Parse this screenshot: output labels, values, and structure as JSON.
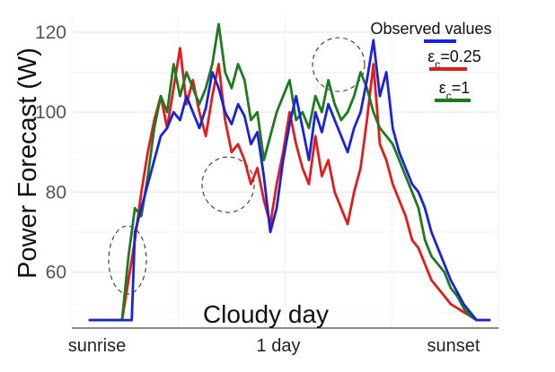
{
  "chart_data": {
    "type": "line",
    "ylabel": "Power Forecast (W)",
    "xlabel": "1 day",
    "annotation": "Cloudy day",
    "ylim": [
      46,
      124
    ],
    "xlim": [
      0,
      100
    ],
    "yticks": [
      60,
      80,
      100,
      120
    ],
    "xticks": [
      {
        "x": 5,
        "label": "sunrise"
      },
      {
        "x": 50,
        "label": "1 day"
      },
      {
        "x": 95,
        "label": "sunset"
      }
    ],
    "grid": true,
    "legend_position": "top-right",
    "series": [
      {
        "name": "Observed values",
        "color": "#1a23d6",
        "points": [
          [
            0,
            48
          ],
          [
            6,
            48
          ],
          [
            10,
            48
          ],
          [
            13,
            48
          ],
          [
            14,
            70
          ],
          [
            16,
            76
          ],
          [
            18,
            82
          ],
          [
            20,
            88
          ],
          [
            22,
            94
          ],
          [
            24,
            96
          ],
          [
            26,
            100
          ],
          [
            28,
            98
          ],
          [
            30,
            104
          ],
          [
            32,
            100
          ],
          [
            34,
            96
          ],
          [
            36,
            101
          ],
          [
            38,
            110
          ],
          [
            40,
            106
          ],
          [
            42,
            100
          ],
          [
            44,
            97
          ],
          [
            46,
            102
          ],
          [
            48,
            99
          ],
          [
            50,
            92
          ],
          [
            52,
            95
          ],
          [
            54,
            84
          ],
          [
            56,
            70
          ],
          [
            58,
            76
          ],
          [
            60,
            88
          ],
          [
            62,
            97
          ],
          [
            64,
            104
          ],
          [
            66,
            96
          ],
          [
            68,
            88
          ],
          [
            70,
            100
          ],
          [
            72,
            95
          ],
          [
            74,
            102
          ],
          [
            76,
            98
          ],
          [
            78,
            94
          ],
          [
            80,
            90
          ],
          [
            82,
            96
          ],
          [
            84,
            100
          ],
          [
            86,
            108
          ],
          [
            88,
            118
          ],
          [
            90,
            104
          ],
          [
            92,
            110
          ],
          [
            94,
            96
          ],
          [
            96,
            90
          ],
          [
            98,
            86
          ],
          [
            100,
            82
          ],
          [
            102,
            80
          ],
          [
            104,
            76
          ],
          [
            106,
            70
          ],
          [
            108,
            66
          ],
          [
            110,
            62
          ],
          [
            112,
            58
          ],
          [
            114,
            55
          ],
          [
            116,
            52
          ],
          [
            118,
            50
          ],
          [
            120,
            48
          ],
          [
            124,
            48
          ]
        ]
      },
      {
        "name": "εc=0.25",
        "color": "#e21b1b",
        "points": [
          [
            0,
            48
          ],
          [
            6,
            48
          ],
          [
            10,
            48
          ],
          [
            12,
            58
          ],
          [
            14,
            68
          ],
          [
            16,
            80
          ],
          [
            18,
            90
          ],
          [
            20,
            98
          ],
          [
            22,
            104
          ],
          [
            24,
            96
          ],
          [
            26,
            106
          ],
          [
            28,
            116
          ],
          [
            30,
            102
          ],
          [
            32,
            108
          ],
          [
            34,
            100
          ],
          [
            36,
            94
          ],
          [
            38,
            104
          ],
          [
            40,
            112
          ],
          [
            42,
            98
          ],
          [
            44,
            90
          ],
          [
            46,
            92
          ],
          [
            48,
            88
          ],
          [
            50,
            82
          ],
          [
            52,
            86
          ],
          [
            54,
            78
          ],
          [
            56,
            72
          ],
          [
            58,
            82
          ],
          [
            60,
            90
          ],
          [
            62,
            100
          ],
          [
            64,
            92
          ],
          [
            66,
            86
          ],
          [
            68,
            82
          ],
          [
            70,
            94
          ],
          [
            72,
            84
          ],
          [
            74,
            88
          ],
          [
            76,
            80
          ],
          [
            78,
            76
          ],
          [
            80,
            72
          ],
          [
            82,
            80
          ],
          [
            84,
            86
          ],
          [
            86,
            98
          ],
          [
            88,
            112
          ],
          [
            90,
            92
          ],
          [
            92,
            88
          ],
          [
            94,
            82
          ],
          [
            96,
            78
          ],
          [
            98,
            74
          ],
          [
            100,
            68
          ],
          [
            102,
            66
          ],
          [
            104,
            62
          ],
          [
            106,
            58
          ],
          [
            108,
            56
          ],
          [
            110,
            54
          ],
          [
            112,
            52
          ],
          [
            114,
            51
          ],
          [
            116,
            50
          ],
          [
            118,
            49
          ],
          [
            120,
            48
          ],
          [
            124,
            48
          ]
        ]
      },
      {
        "name": "εc=1",
        "color": "#1f7a1f",
        "points": [
          [
            0,
            48
          ],
          [
            6,
            48
          ],
          [
            10,
            48
          ],
          [
            12,
            64
          ],
          [
            14,
            76
          ],
          [
            16,
            74
          ],
          [
            18,
            84
          ],
          [
            20,
            96
          ],
          [
            22,
            104
          ],
          [
            24,
            100
          ],
          [
            26,
            112
          ],
          [
            28,
            104
          ],
          [
            30,
            110
          ],
          [
            32,
            106
          ],
          [
            34,
            102
          ],
          [
            36,
            106
          ],
          [
            38,
            112
          ],
          [
            40,
            122
          ],
          [
            42,
            110
          ],
          [
            44,
            106
          ],
          [
            46,
            112
          ],
          [
            48,
            108
          ],
          [
            50,
            98
          ],
          [
            52,
            100
          ],
          [
            54,
            88
          ],
          [
            56,
            94
          ],
          [
            58,
            100
          ],
          [
            60,
            104
          ],
          [
            62,
            108
          ],
          [
            64,
            98
          ],
          [
            66,
            100
          ],
          [
            68,
            96
          ],
          [
            70,
            104
          ],
          [
            72,
            100
          ],
          [
            74,
            108
          ],
          [
            76,
            102
          ],
          [
            78,
            98
          ],
          [
            80,
            100
          ],
          [
            82,
            104
          ],
          [
            84,
            110
          ],
          [
            86,
            106
          ],
          [
            88,
            100
          ],
          [
            90,
            96
          ],
          [
            92,
            94
          ],
          [
            94,
            92
          ],
          [
            96,
            88
          ],
          [
            98,
            84
          ],
          [
            100,
            80
          ],
          [
            102,
            76
          ],
          [
            104,
            68
          ],
          [
            106,
            64
          ],
          [
            108,
            62
          ],
          [
            110,
            60
          ],
          [
            112,
            56
          ],
          [
            114,
            54
          ],
          [
            116,
            51
          ],
          [
            118,
            49
          ],
          [
            120,
            48
          ],
          [
            124,
            48
          ]
        ]
      }
    ]
  }
}
